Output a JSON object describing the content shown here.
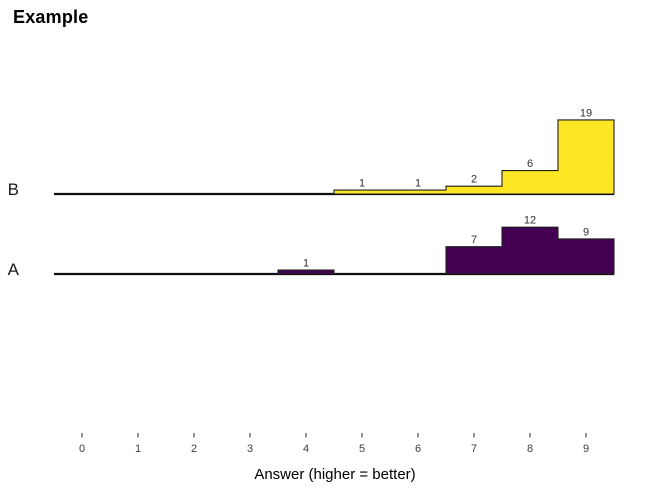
{
  "title": "Example",
  "chart_data": {
    "type": "bar",
    "variant": "ridgeline-histogram",
    "title": "Example",
    "xlabel": "Answer (higher = better)",
    "categories": [
      "0",
      "1",
      "2",
      "3",
      "4",
      "5",
      "6",
      "7",
      "8",
      "9"
    ],
    "xlim": [
      -0.5,
      9.5
    ],
    "bin_width": 1,
    "value_labels_shown": true,
    "legend": "none",
    "grid": "off",
    "row_order_top_to_bottom": [
      "B",
      "A"
    ],
    "series": [
      {
        "name": "B",
        "color": "#FDE725",
        "values": [
          0,
          0,
          0,
          0,
          0,
          1,
          1,
          2,
          6,
          19
        ]
      },
      {
        "name": "A",
        "color": "#440154",
        "values": [
          0,
          0,
          0,
          0,
          1,
          0,
          0,
          7,
          12,
          9
        ]
      }
    ],
    "colors": {
      "outline": "#1f1f1f",
      "baseline": "#000000",
      "axis_text": "#404040",
      "count_label_text": "#303030",
      "row_label_text": "#1a1a1a",
      "background": "#ffffff"
    }
  }
}
